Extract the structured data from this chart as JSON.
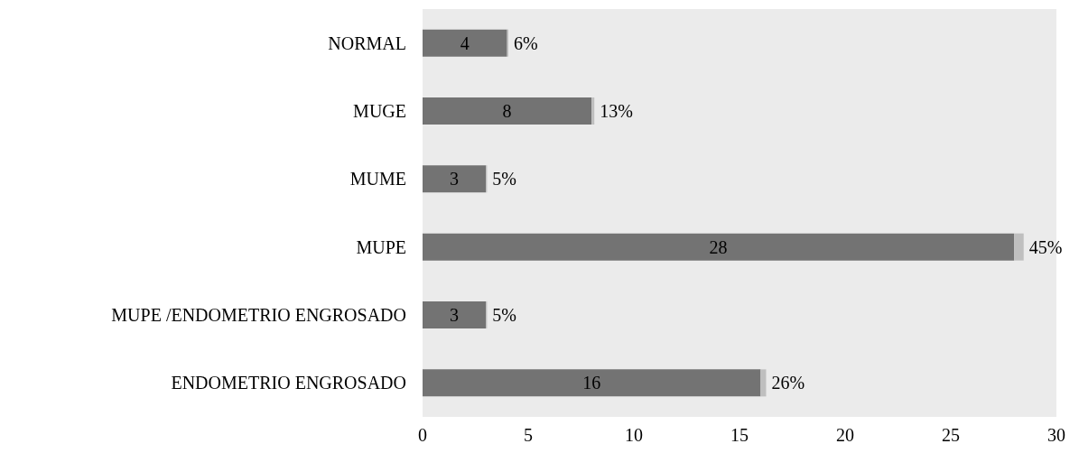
{
  "chart_data": {
    "type": "bar",
    "orientation": "horizontal",
    "stacked": true,
    "categories": [
      "NORMAL",
      "MUGE",
      "MUME",
      "MUPE",
      "MUPE /ENDOMETRIO ENGROSADO",
      "ENDOMETRIO ENGROSADO"
    ],
    "series": [
      {
        "color": "#737373",
        "values": [
          4,
          8,
          3,
          28,
          3,
          16
        ],
        "value_labels": [
          "4",
          "8",
          "3",
          "28",
          "3",
          "16"
        ]
      },
      {
        "color": "#bfbfbf",
        "values": [
          0.06,
          0.13,
          0.05,
          0.45,
          0.05,
          0.26
        ],
        "value_labels": [
          "6%",
          "13%",
          "5%",
          "45%",
          "5%",
          "26%"
        ]
      }
    ],
    "xlim": [
      0,
      30
    ],
    "xticks": [
      0,
      5,
      10,
      15,
      20,
      25,
      30
    ],
    "grid": false
  }
}
